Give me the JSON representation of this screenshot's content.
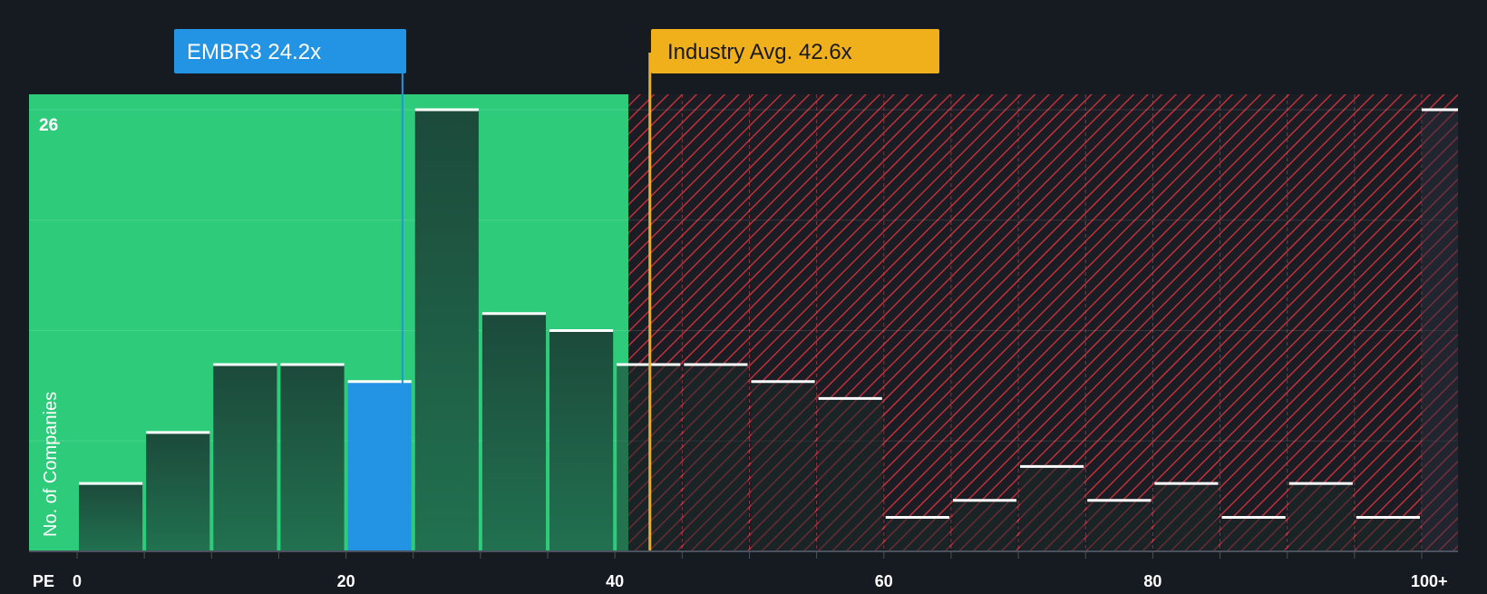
{
  "chart_data": {
    "type": "bar",
    "title": "",
    "xlabel": "PE",
    "ylabel": "No. of Companies",
    "x_ticks": [
      "0",
      "20",
      "40",
      "60",
      "80",
      "100+"
    ],
    "y_tick_label": "26",
    "ylim": [
      0,
      27
    ],
    "bins": [
      {
        "range": "0-5",
        "count": 4
      },
      {
        "range": "5-10",
        "count": 7
      },
      {
        "range": "10-15",
        "count": 11
      },
      {
        "range": "15-20",
        "count": 11
      },
      {
        "range": "20-25",
        "count": 10,
        "highlight": true
      },
      {
        "range": "25-30",
        "count": 26
      },
      {
        "range": "30-35",
        "count": 14
      },
      {
        "range": "35-40",
        "count": 13
      },
      {
        "range": "40-45",
        "count": 11
      },
      {
        "range": "45-50",
        "count": 11
      },
      {
        "range": "50-55",
        "count": 10
      },
      {
        "range": "55-60",
        "count": 9
      },
      {
        "range": "60-65",
        "count": 2
      },
      {
        "range": "65-70",
        "count": 3
      },
      {
        "range": "70-75",
        "count": 5
      },
      {
        "range": "75-80",
        "count": 3
      },
      {
        "range": "80-85",
        "count": 4
      },
      {
        "range": "85-90",
        "count": 2
      },
      {
        "range": "90-95",
        "count": 4
      },
      {
        "range": "95-100",
        "count": 2
      },
      {
        "range": "100+",
        "count": 26
      }
    ],
    "company": {
      "label": "EMBR3 24.2x",
      "value": 24.2,
      "color": "#2394e3"
    },
    "industry": {
      "label": "Industry Avg. 42.6x",
      "value": 42.6,
      "color": "#f0b01b"
    },
    "fair_zone_max": 41,
    "colors": {
      "background": "#161b22",
      "fair_zone": "#2ecc7a",
      "bar": "#1f4d3d",
      "overvalued_hatch": "#c0303a",
      "bar_top": "#ffffff"
    }
  }
}
